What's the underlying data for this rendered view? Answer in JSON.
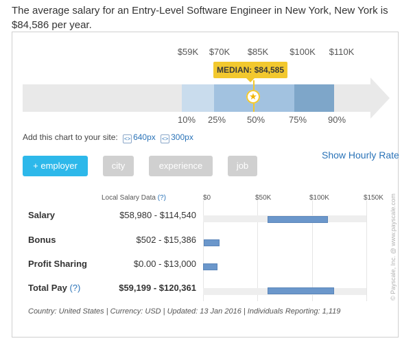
{
  "intro_text": "The average salary for an Entry-Level Software Engineer in New York, New York is $84,586 per year.",
  "range_chart": {
    "top_ticks": [
      "$59K",
      "$70K",
      "$85K",
      "$100K",
      "$110K"
    ],
    "median_label": "MEDIAN: $84,585",
    "percentile_ticks": [
      "10%",
      "25%",
      "50%",
      "75%",
      "90%"
    ],
    "band_colors": [
      "#c9dced",
      "#a2c2e0",
      "#a2c2e0",
      "#7ea6c9"
    ]
  },
  "add_chart": {
    "label": "Add this chart to your site:",
    "size_640": "640px",
    "size_300": "300px"
  },
  "show_hourly_rate": "Show Hourly Rate",
  "filters": {
    "employer": "+ employer",
    "city": "city",
    "experience": "experience",
    "job": "job"
  },
  "table": {
    "column_header": "Local Salary Data",
    "help_mark": "(?)",
    "axis_ticks": [
      "$0",
      "$50K",
      "$100K",
      "$150K"
    ],
    "rows": [
      {
        "label": "Salary",
        "value": "$58,980 - $114,540",
        "help": "",
        "range": [
          58980,
          114540
        ]
      },
      {
        "label": "Bonus",
        "value": "$502 - $15,386",
        "help": "",
        "range": [
          502,
          15386
        ]
      },
      {
        "label": "Profit Sharing",
        "value": "$0.00 - $13,000",
        "help": "",
        "range": [
          0,
          13000
        ]
      },
      {
        "label": "Total Pay",
        "value": "$59,199 - $120,361",
        "help": "(?)",
        "range": [
          59199,
          120361
        ]
      }
    ]
  },
  "footer": "Country: United States | Currency: USD | Updated: 13 Jan 2016 | Individuals Reporting: 1,119",
  "credit": "© Payscale, Inc. @ www.payscale.com"
}
